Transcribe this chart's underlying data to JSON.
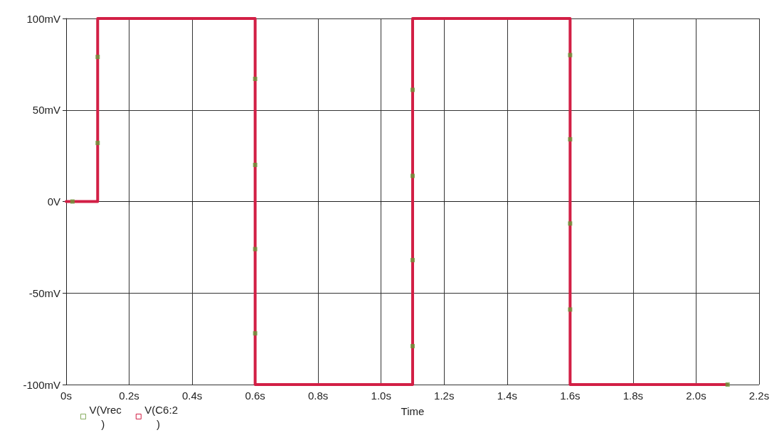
{
  "chart_data": {
    "type": "line",
    "xlabel": "Time",
    "xlim": [
      0,
      2.2
    ],
    "xticks": [
      {
        "value": 0,
        "label": "0s"
      },
      {
        "value": 0.2,
        "label": "0.2s"
      },
      {
        "value": 0.4,
        "label": "0.4s"
      },
      {
        "value": 0.6,
        "label": "0.6s"
      },
      {
        "value": 0.8,
        "label": "0.8s"
      },
      {
        "value": 1.0,
        "label": "1.0s"
      },
      {
        "value": 1.2,
        "label": "1.2s"
      },
      {
        "value": 1.4,
        "label": "1.4s"
      },
      {
        "value": 1.6,
        "label": "1.6s"
      },
      {
        "value": 1.8,
        "label": "1.8s"
      },
      {
        "value": 2.0,
        "label": "2.0s"
      },
      {
        "value": 2.2,
        "label": "2.2s"
      }
    ],
    "ylim": [
      -100,
      100
    ],
    "yticks": [
      {
        "value": -100,
        "label": "-100mV"
      },
      {
        "value": -50,
        "label": "-50mV"
      },
      {
        "value": 0,
        "label": "0V"
      },
      {
        "value": 50,
        "label": "50mV"
      },
      {
        "value": 100,
        "label": "100mV"
      }
    ],
    "grid": true,
    "legend": "bottom left",
    "series": [
      {
        "name": "V(Vrec)",
        "type": "scatter",
        "color": "#6a9a3a",
        "marker": "square",
        "x": [
          0.02,
          0.1,
          0.1,
          0.6,
          0.6,
          0.6,
          0.6,
          1.1,
          1.1,
          1.1,
          1.1,
          1.6,
          1.6,
          1.6,
          1.6,
          2.1
        ],
        "values": [
          0,
          32,
          79,
          67,
          20,
          -26,
          -72,
          -79,
          -32,
          14,
          61,
          80,
          34,
          -12,
          -59,
          -100
        ]
      },
      {
        "name": "V(C6:2)",
        "color": "#d21f45",
        "marker": "none",
        "line_style": "solid",
        "x": [
          0,
          0.1,
          0.1,
          0.6,
          0.6,
          1.1,
          1.1,
          1.6,
          1.6,
          2.1
        ],
        "values": [
          0,
          0,
          100,
          100,
          -100,
          -100,
          100,
          100,
          -100,
          -100
        ]
      }
    ]
  }
}
